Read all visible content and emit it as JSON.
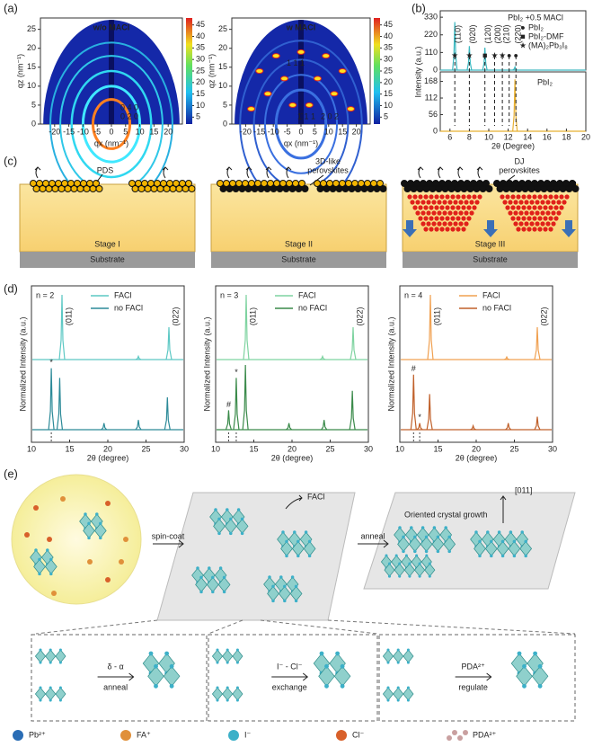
{
  "a": {
    "label": "(a)",
    "images": [
      {
        "title": "w/o MACl",
        "annotations": [
          "0 4 0",
          "0 2 0"
        ]
      },
      {
        "title": "w MACl",
        "annotations": [
          "1 1 1",
          "1̄ 1 1",
          "2 0 2"
        ]
      }
    ],
    "xlabel": "qx (nm⁻¹)",
    "ylabel": "qz (nm⁻¹)",
    "xlim": [
      -25,
      25
    ],
    "xticks": [
      -20,
      -15,
      -10,
      -5,
      0,
      5,
      10,
      15,
      20
    ],
    "ylim": [
      0,
      28
    ],
    "yticks": [
      0,
      5,
      10,
      15,
      20,
      25
    ],
    "colorbar_lim": [
      2,
      48
    ],
    "colorbar_ticks": [
      5,
      10,
      15,
      20,
      25,
      30,
      35,
      40,
      45
    ]
  },
  "b": {
    "label": "(b)",
    "title": "PbI₂ +0.5 MACl",
    "legend": [
      {
        "symbol": "●",
        "name": "PbI₂"
      },
      {
        "symbol": "■",
        "name": "PbI₂-DMF"
      },
      {
        "symbol": "★",
        "name": "(MA)₂Pb₃I₈"
      }
    ],
    "lower_title": "PbI₂",
    "xlabel": "2θ (Degree)",
    "ylabel": "Intensity (a.u.)",
    "xlim": [
      5,
      20
    ],
    "xticks": [
      6,
      8,
      10,
      12,
      14,
      16,
      18,
      20
    ],
    "top": {
      "color": "#3cb8c0",
      "ylim": [
        0,
        370
      ],
      "yticks": [
        0,
        110,
        220,
        330
      ],
      "peaks": [
        {
          "x": 6.5,
          "h": 300
        },
        {
          "x": 8.0,
          "h": 150
        },
        {
          "x": 9.6,
          "h": 140
        },
        {
          "x": 12.7,
          "h": 20
        }
      ]
    },
    "bottom": {
      "color": "#e8b030",
      "ylim": [
        0,
        200
      ],
      "yticks": [
        0,
        56,
        112,
        168
      ],
      "peaks": [
        {
          "x": 12.7,
          "h": 175
        }
      ]
    },
    "indices": [
      {
        "x": 6.5,
        "label": "(110)"
      },
      {
        "x": 8.0,
        "label": "(020)"
      },
      {
        "x": 9.6,
        "label": "(120)"
      },
      {
        "x": 10.6,
        "label": "(200)"
      },
      {
        "x": 11.5,
        "label": "(210)"
      },
      {
        "x": 12.7,
        "label": "(220)"
      }
    ],
    "markers": [
      {
        "x": 6.5,
        "symbol": "★"
      },
      {
        "x": 8.0,
        "symbol": "★"
      },
      {
        "x": 9.6,
        "symbol": "■"
      },
      {
        "x": 10.6,
        "symbol": "★"
      },
      {
        "x": 11.4,
        "symbol": "★"
      },
      {
        "x": 12.1,
        "symbol": "●"
      },
      {
        "x": 12.8,
        "symbol": "●"
      }
    ]
  },
  "c": {
    "label": "(c)",
    "stages": [
      {
        "annotation": [
          "PDS"
        ],
        "stage": "Stage I",
        "substrate": "Substrate"
      },
      {
        "annotation": [
          "3D-like",
          "perovskites"
        ],
        "stage": "Stage II",
        "substrate": "Substrate"
      },
      {
        "annotation": [
          "DJ",
          "perovskites"
        ],
        "stage": "Stage III",
        "substrate": "Substrate"
      }
    ]
  },
  "d": {
    "label": "(d)",
    "xlabel": "2θ (degree)",
    "ylabel": "Normalized Intensity (a.u.)",
    "xlim": [
      10,
      30
    ],
    "xticks": [
      10,
      15,
      20,
      25,
      30
    ],
    "plots": [
      {
        "title": "n = 2",
        "series": [
          {
            "name": "FACl",
            "color": "#5cc8c4",
            "peaks": [
              {
                "x": 14.0,
                "h": 1.0
              },
              {
                "x": 24.0,
                "h": 0.05
              },
              {
                "x": 28.0,
                "h": 0.5
              }
            ]
          },
          {
            "name": "no FACl",
            "color": "#2c8a98",
            "peaks": [
              {
                "x": 12.6,
                "h": 0.95
              },
              {
                "x": 13.7,
                "h": 0.8
              },
              {
                "x": 19.5,
                "h": 0.1
              },
              {
                "x": 24.0,
                "h": 0.15
              },
              {
                "x": 27.8,
                "h": 0.5
              }
            ]
          }
        ],
        "peak_labels": [
          {
            "x": 14.0,
            "label": "(011)"
          },
          {
            "x": 28.0,
            "label": "(022)"
          }
        ],
        "markers": [
          {
            "x": 12.6,
            "symbol": "*"
          }
        ]
      },
      {
        "title": "n = 3",
        "series": [
          {
            "name": "FACl",
            "color": "#7ed3a0",
            "peaks": [
              {
                "x": 14.0,
                "h": 1.0
              },
              {
                "x": 24.0,
                "h": 0.05
              },
              {
                "x": 28.0,
                "h": 0.5
              }
            ]
          },
          {
            "name": "no FACl",
            "color": "#3a8a4a",
            "peaks": [
              {
                "x": 11.7,
                "h": 0.3
              },
              {
                "x": 12.7,
                "h": 0.8
              },
              {
                "x": 13.9,
                "h": 1.0
              },
              {
                "x": 19.6,
                "h": 0.1
              },
              {
                "x": 24.2,
                "h": 0.15
              },
              {
                "x": 27.9,
                "h": 0.6
              }
            ]
          }
        ],
        "peak_labels": [
          {
            "x": 14.0,
            "label": "(011)"
          },
          {
            "x": 28.0,
            "label": "(022)"
          }
        ],
        "markers": [
          {
            "x": 11.7,
            "symbol": "#"
          },
          {
            "x": 12.7,
            "symbol": "*"
          }
        ]
      },
      {
        "title": "n = 4",
        "series": [
          {
            "name": "FACl",
            "color": "#f0a050",
            "peaks": [
              {
                "x": 14.0,
                "h": 1.0
              },
              {
                "x": 24.0,
                "h": 0.04
              },
              {
                "x": 28.0,
                "h": 0.5
              }
            ]
          },
          {
            "name": "no FACl",
            "color": "#c0602a",
            "peaks": [
              {
                "x": 11.8,
                "h": 0.85
              },
              {
                "x": 12.6,
                "h": 0.1
              },
              {
                "x": 13.9,
                "h": 0.55
              },
              {
                "x": 19.6,
                "h": 0.06
              },
              {
                "x": 24.2,
                "h": 0.1
              },
              {
                "x": 28.0,
                "h": 0.2
              }
            ]
          }
        ],
        "peak_labels": [
          {
            "x": 14.0,
            "label": "(011)"
          },
          {
            "x": 28.0,
            "label": "(022)"
          }
        ],
        "markers": [
          {
            "x": 11.8,
            "symbol": "#"
          },
          {
            "x": 12.6,
            "symbol": "*"
          }
        ]
      }
    ]
  },
  "e": {
    "label": "(e)",
    "steps": [
      "spin-coat",
      "anneal"
    ],
    "facl": "FACl",
    "growth": "Oriented crystal growth",
    "direction": "[011]",
    "insets": [
      {
        "top": "δ - α",
        "bottom": "anneal"
      },
      {
        "top": "I⁻ - Cl⁻",
        "bottom": "exchange"
      },
      {
        "top": "PDA²⁺",
        "bottom": "regulate"
      }
    ],
    "legend": [
      {
        "name": "Pb²⁺",
        "color": "#2a6db5"
      },
      {
        "name": "FA⁺",
        "color": "#e0903a"
      },
      {
        "name": "I⁻",
        "color": "#3cb0c8"
      },
      {
        "name": "Cl⁻",
        "color": "#d8602a"
      },
      {
        "name": "PDA²⁺",
        "color": "#c9a0a0"
      }
    ]
  }
}
